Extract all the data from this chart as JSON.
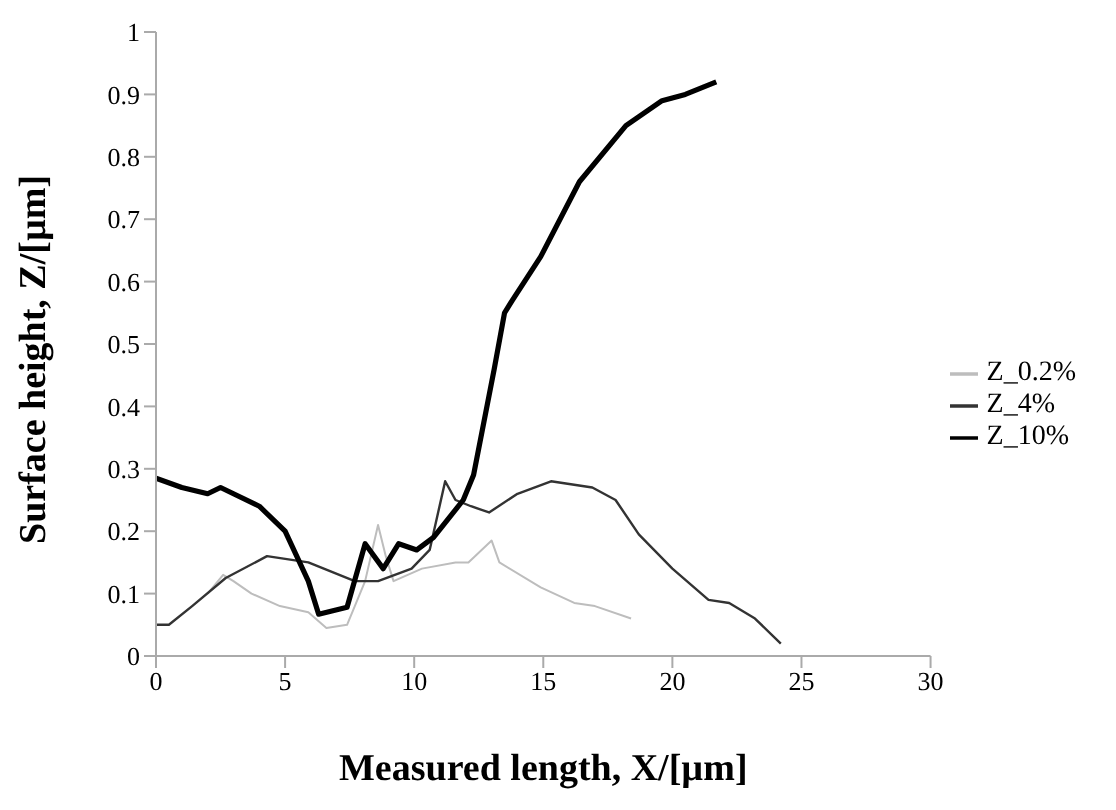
{
  "chart_data": {
    "type": "line",
    "xlabel": "Measured length, X/[µm]",
    "ylabel": "Surface height, Z/[µm]",
    "xlim": [
      0,
      30
    ],
    "xticks": [
      0,
      5,
      10,
      15,
      20,
      25,
      30
    ],
    "ylim": [
      0,
      1
    ],
    "yticks": [
      0,
      0.1,
      0.2,
      0.3,
      0.4,
      0.5,
      0.6,
      0.7,
      0.8,
      0.9,
      1
    ],
    "grid": false,
    "legend": "right",
    "marker": "none",
    "series": [
      {
        "name": "Z_0.2%",
        "color": "#bdbdbd",
        "x": [
          2,
          2.6,
          3.0,
          3.7,
          4.8,
          5.9,
          6.6,
          7.4,
          7.7,
          8.1,
          8.6,
          8.9,
          9.2,
          10.3,
          11.6,
          12.1,
          13,
          13.3,
          14.9,
          16.2,
          17,
          18.4
        ],
        "values": [
          0.1,
          0.13,
          0.12,
          0.1,
          0.08,
          0.07,
          0.045,
          0.05,
          0.08,
          0.12,
          0.21,
          0.16,
          0.12,
          0.14,
          0.15,
          0.15,
          0.185,
          0.15,
          0.11,
          0.085,
          0.08,
          0.06
        ]
      },
      {
        "name": "Z_4%",
        "color": "#333333",
        "x": [
          0,
          0.5,
          1.4,
          2.7,
          4.3,
          5.9,
          7.7,
          8.6,
          9.9,
          10.6,
          11.2,
          11.6,
          12.2,
          12.9,
          14,
          15.3,
          16.9,
          17.8,
          18.7,
          20,
          21.4,
          22.2,
          23.2,
          24.2
        ],
        "values": [
          0.05,
          0.05,
          0.08,
          0.125,
          0.16,
          0.15,
          0.12,
          0.12,
          0.14,
          0.17,
          0.28,
          0.25,
          0.24,
          0.23,
          0.26,
          0.28,
          0.27,
          0.25,
          0.195,
          0.14,
          0.09,
          0.085,
          0.06,
          0.02
        ]
      },
      {
        "name": "Z_10%",
        "color": "#000000",
        "x": [
          0,
          1,
          2,
          2.5,
          4,
          5,
          5.9,
          6.3,
          7.4,
          8.1,
          8.8,
          9.4,
          10.1,
          10.75,
          11.9,
          12.3,
          13.1,
          13.5,
          13.8,
          14.9,
          16.4,
          18.2,
          19.6,
          20.5,
          21.7
        ],
        "values": [
          0.285,
          0.27,
          0.26,
          0.27,
          0.24,
          0.2,
          0.12,
          0.067,
          0.078,
          0.18,
          0.14,
          0.18,
          0.17,
          0.19,
          0.25,
          0.29,
          0.46,
          0.55,
          0.57,
          0.64,
          0.76,
          0.85,
          0.89,
          0.9,
          0.92
        ]
      }
    ]
  }
}
